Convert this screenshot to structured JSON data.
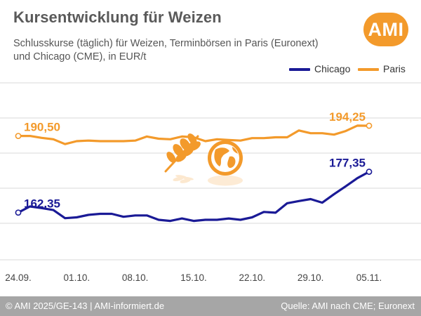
{
  "header": {
    "title": "Kursentwicklung für Weizen",
    "subtitle": "Schlusskurse (täglich) für Weizen, Terminbörsen in Paris (Euronext) und Chicago (CME), in EUR/t",
    "logo_text": "AMI"
  },
  "colors": {
    "chicago": "#1a1a96",
    "paris": "#f39a2b",
    "grid": "#d9d9d9",
    "footer": "#a6a6a6"
  },
  "icons": [
    "wheat-icon",
    "globe-icon"
  ],
  "chart_data": {
    "type": "line",
    "title": "Kursentwicklung für Weizen",
    "xlabel": "",
    "ylabel": "EUR/t",
    "ylim": [
      145,
      210
    ],
    "grid": true,
    "legend_position": "top-right",
    "x_tick_labels": [
      "24.09.",
      "01.10.",
      "08.10.",
      "15.10.",
      "22.10.",
      "29.10.",
      "05.11."
    ],
    "x_tick_index": [
      0,
      5,
      10,
      15,
      20,
      25,
      30
    ],
    "x_count": 31,
    "series": [
      {
        "name": "Chicago",
        "values": [
          162.35,
          164.6,
          164.0,
          163.3,
          160.3,
          160.6,
          161.5,
          161.9,
          161.9,
          160.8,
          161.3,
          161.3,
          159.7,
          159.3,
          160.2,
          159.3,
          159.7,
          159.7,
          160.2,
          159.7,
          160.6,
          162.6,
          162.3,
          165.8,
          166.6,
          167.3,
          166.0,
          169.1,
          172.0,
          175.0,
          177.35
        ],
        "labels": [
          {
            "index": 0,
            "text": "162,35"
          },
          {
            "index": 30,
            "text": "177,35"
          }
        ]
      },
      {
        "name": "Paris",
        "values": [
          190.5,
          190.5,
          189.8,
          189.3,
          187.5,
          188.6,
          188.8,
          188.6,
          188.6,
          188.6,
          188.8,
          190.3,
          189.5,
          189.3,
          190.3,
          190.0,
          188.6,
          189.3,
          189.0,
          188.8,
          189.7,
          189.7,
          190.0,
          190.0,
          192.5,
          191.5,
          191.5,
          191.0,
          192.3,
          194.3,
          194.25
        ],
        "labels": [
          {
            "index": 0,
            "text": "190,50"
          },
          {
            "index": 30,
            "text": "194,25"
          }
        ]
      }
    ]
  },
  "footer": {
    "left": "© AMI 2025/GE-143 | AMI-informiert.de",
    "right": "Quelle: AMI nach CME; Euronext"
  }
}
